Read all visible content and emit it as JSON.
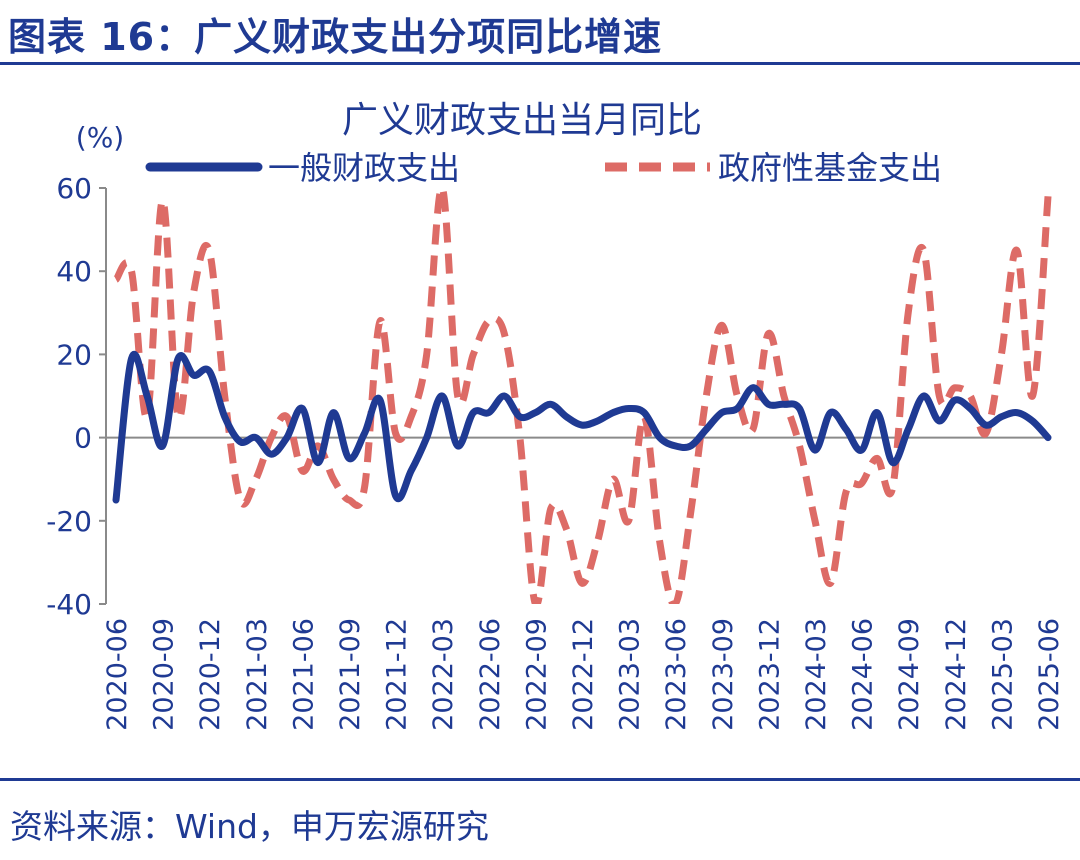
{
  "figure_title": "图表 16：广义财政支出分项同比增速",
  "source": "资料来源：Wind，申万宏源研究",
  "colors": {
    "accent": "#1f3a93",
    "series1": "#1f3a93",
    "series2": "#dd6b66"
  },
  "chart_data": {
    "type": "line",
    "title": "广义财政支出当月同比",
    "ylabel": "(%)",
    "xlabel": "",
    "ylim": [
      -40,
      60
    ],
    "yticks": [
      "60",
      "40",
      "20",
      "0",
      "-20",
      "-40"
    ],
    "ytick_values": [
      60,
      40,
      20,
      0,
      -20,
      -40
    ],
    "grid": false,
    "legend_position": "top",
    "x": [
      "2020-06",
      "2020-07",
      "2020-08",
      "2020-09",
      "2020-10",
      "2020-11",
      "2020-12",
      "2021-01",
      "2021-02",
      "2021-03",
      "2021-04",
      "2021-05",
      "2021-06",
      "2021-07",
      "2021-08",
      "2021-09",
      "2021-10",
      "2021-11",
      "2021-12",
      "2022-01",
      "2022-02",
      "2022-03",
      "2022-04",
      "2022-05",
      "2022-06",
      "2022-07",
      "2022-08",
      "2022-09",
      "2022-10",
      "2022-11",
      "2022-12",
      "2023-01",
      "2023-02",
      "2023-03",
      "2023-04",
      "2023-05",
      "2023-06",
      "2023-07",
      "2023-08",
      "2023-09",
      "2023-10",
      "2023-11",
      "2023-12",
      "2024-01",
      "2024-02",
      "2024-03",
      "2024-04",
      "2024-05",
      "2024-06",
      "2024-07",
      "2024-08",
      "2024-09",
      "2024-10",
      "2024-11",
      "2024-12",
      "2025-01",
      "2025-02",
      "2025-03",
      "2025-04",
      "2025-05",
      "2025-06"
    ],
    "x_tick_labels": [
      "2020-06",
      "2020-09",
      "2020-12",
      "2021-03",
      "2021-06",
      "2021-09",
      "2021-12",
      "2022-03",
      "2022-06",
      "2022-09",
      "2022-12",
      "2023-03",
      "2023-06",
      "2023-09",
      "2023-12",
      "2024-03",
      "2024-06",
      "2024-09",
      "2024-12",
      "2025-03",
      "2025-06"
    ],
    "series": [
      {
        "name": "一般财政支出",
        "style": "solid",
        "values": [
          -15,
          19,
          10,
          -2,
          19,
          15,
          16,
          5,
          -1,
          0,
          -4,
          0,
          7,
          -6,
          6,
          -5,
          1,
          9,
          -14,
          -8,
          0,
          10,
          -2,
          6,
          6,
          10,
          5,
          6,
          8,
          5,
          3,
          4,
          6,
          7,
          6,
          0,
          -2,
          -2,
          2,
          6,
          7,
          12,
          8,
          8,
          7,
          -3,
          6,
          2,
          -3,
          6,
          -6,
          2,
          10,
          4,
          9,
          7,
          3,
          5,
          6,
          4,
          0
        ]
      },
      {
        "name": "政府性基金支出",
        "style": "dashed",
        "values": [
          38,
          40,
          5,
          57,
          5,
          35,
          45,
          10,
          -15,
          -10,
          0,
          5,
          -8,
          -2,
          -10,
          -15,
          -12,
          28,
          1,
          5,
          20,
          60,
          10,
          20,
          28,
          25,
          0,
          -40,
          -17,
          -22,
          -35,
          -25,
          -10,
          -20,
          5,
          -25,
          -40,
          -18,
          10,
          27,
          10,
          2,
          25,
          10,
          -2,
          -20,
          -35,
          -13,
          -11,
          -5,
          -12,
          30,
          45,
          10,
          12,
          10,
          1,
          20,
          45,
          10,
          58
        ]
      }
    ]
  }
}
